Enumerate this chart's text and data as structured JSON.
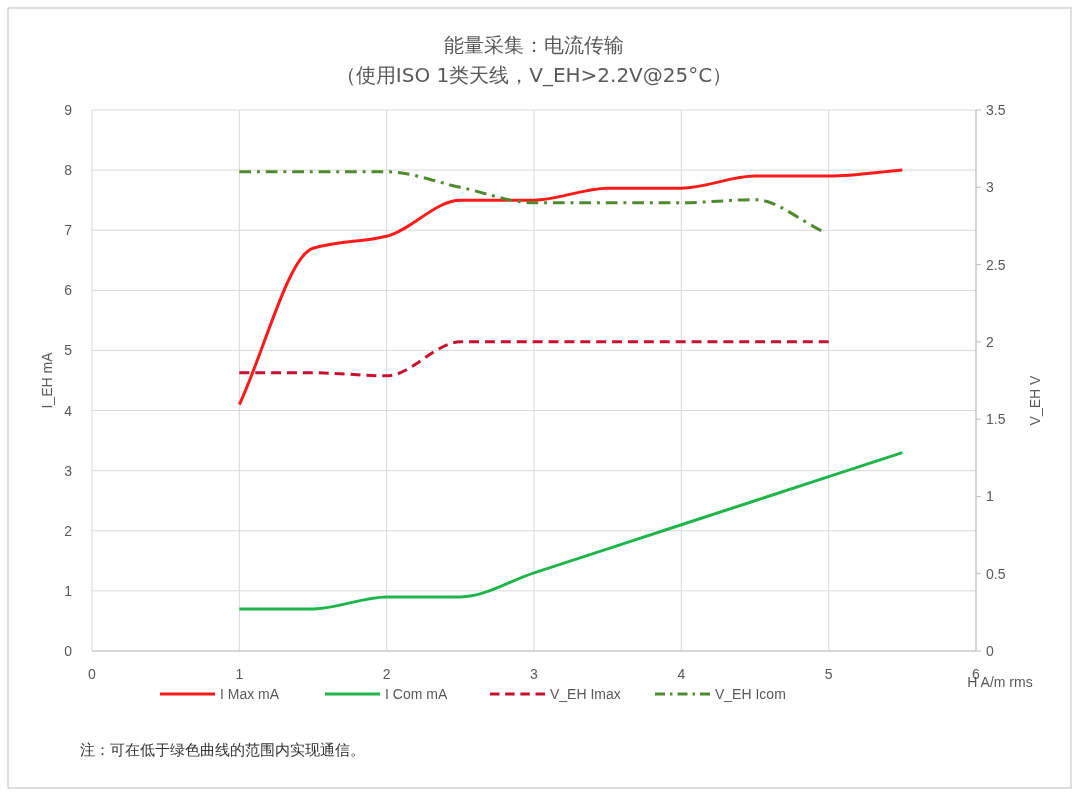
{
  "chart_data": {
    "type": "line",
    "title": "能量采集：电流传输",
    "subtitle": "（使用ISO 1类天线，V_EH>2.2V@25°C）",
    "xlabel": "H A/m rms",
    "ylabel": "I_EH mA",
    "y2label": "V_EH V",
    "x": [
      1,
      1.5,
      2,
      2.5,
      3,
      3.5,
      4,
      4.5,
      5,
      5.5
    ],
    "series": [
      {
        "name": "I Max mA",
        "color": "#ff1a1a",
        "line_style": "solid",
        "values": [
          4.1,
          6.7,
          6.9,
          7.5,
          7.5,
          7.7,
          7.7,
          7.9,
          7.9,
          8.0
        ]
      },
      {
        "name": "I Com mA",
        "color": "#1fb54a",
        "line_style": "solid",
        "values": [
          0.7,
          0.7,
          0.9,
          0.9,
          1.3,
          1.7,
          2.1,
          2.5,
          2.9,
          3.3
        ]
      },
      {
        "name": "V_EH Imax",
        "color": "#c8102e",
        "line_style": "dashed",
        "axis": "y2",
        "x": [
          1,
          1.5,
          2,
          2.5,
          3,
          3.5,
          4,
          4.5,
          5
        ],
        "values": [
          1.8,
          1.8,
          1.78,
          2.0,
          2.0,
          2.0,
          2.0,
          2.0,
          2.0
        ]
      },
      {
        "name": "V_EH Icom",
        "color": "#4f8a2e",
        "line_style": "dashdot",
        "axis": "y2",
        "x": [
          1,
          1.5,
          2,
          2.5,
          3,
          3.5,
          4,
          4.5,
          4.95
        ],
        "values": [
          3.1,
          3.1,
          3.1,
          3.0,
          2.9,
          2.9,
          2.9,
          2.92,
          2.72
        ]
      }
    ],
    "xlim": [
      0,
      6
    ],
    "xticks": [
      0,
      1,
      2,
      3,
      4,
      5,
      6
    ],
    "ylim": [
      0,
      9
    ],
    "yticks": [
      0,
      1,
      2,
      3,
      4,
      5,
      6,
      7,
      8,
      9
    ],
    "y2lim": [
      0,
      3.5
    ],
    "y2ticks": [
      0,
      0.5,
      1,
      1.5,
      2,
      2.5,
      3,
      3.5
    ],
    "grid": true,
    "legend": "bottom",
    "annotations": [
      "注：可在低于绿色曲线的范围内实现通信。"
    ]
  }
}
